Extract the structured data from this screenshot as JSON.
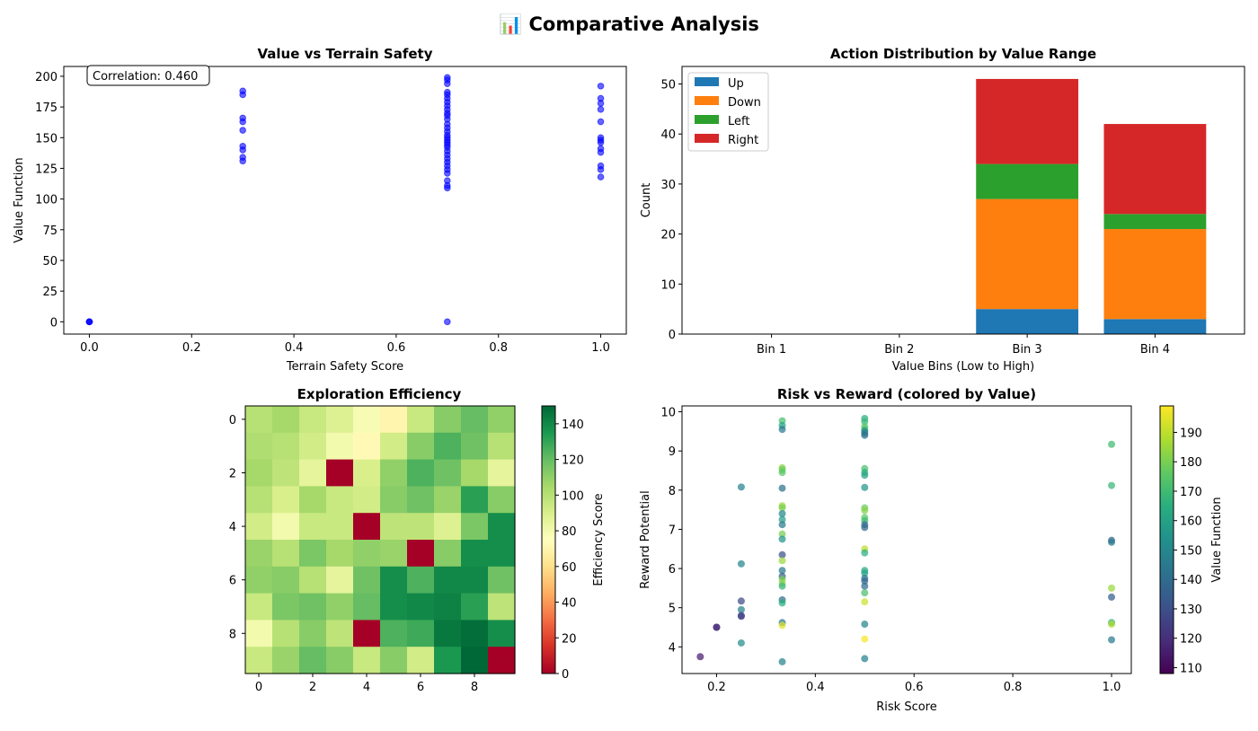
{
  "suptitle": "📊 Comparative Analysis",
  "colors": {
    "scatter_blue": "#0000ff",
    "up": "#1f77b4",
    "down": "#ff7f0e",
    "left": "#2ca02c",
    "right": "#d62728"
  },
  "chart_data": [
    {
      "type": "scatter",
      "title": "Value vs Terrain Safety",
      "xlabel": "Terrain Safety Score",
      "ylabel": "Value Function",
      "xlim": [
        -0.05,
        1.05
      ],
      "ylim": [
        -10,
        208
      ],
      "xticks": [
        0.0,
        0.2,
        0.4,
        0.6,
        0.8,
        1.0
      ],
      "xtick_labels": [
        "0.0",
        "0.2",
        "0.4",
        "0.6",
        "0.8",
        "1.0"
      ],
      "yticks": [
        0,
        25,
        50,
        75,
        100,
        125,
        150,
        175,
        200
      ],
      "yticks_labels": [
        "0",
        "25",
        "50",
        "75",
        "100",
        "125",
        "150",
        "175",
        "200"
      ],
      "annotation": "Correlation: 0.460",
      "points": [
        [
          0.0,
          0
        ],
        [
          0.0,
          0
        ],
        [
          0.0,
          0
        ],
        [
          0.3,
          131
        ],
        [
          0.3,
          134
        ],
        [
          0.3,
          140
        ],
        [
          0.3,
          143
        ],
        [
          0.3,
          156
        ],
        [
          0.3,
          163
        ],
        [
          0.3,
          166
        ],
        [
          0.3,
          185
        ],
        [
          0.3,
          188
        ],
        [
          0.7,
          0
        ],
        [
          0.7,
          109
        ],
        [
          0.7,
          111
        ],
        [
          0.7,
          115
        ],
        [
          0.7,
          121
        ],
        [
          0.7,
          124
        ],
        [
          0.7,
          127
        ],
        [
          0.7,
          130
        ],
        [
          0.7,
          133
        ],
        [
          0.7,
          136
        ],
        [
          0.7,
          139
        ],
        [
          0.7,
          142
        ],
        [
          0.7,
          144
        ],
        [
          0.7,
          146
        ],
        [
          0.7,
          148
        ],
        [
          0.7,
          150
        ],
        [
          0.7,
          152
        ],
        [
          0.7,
          155
        ],
        [
          0.7,
          158
        ],
        [
          0.7,
          161
        ],
        [
          0.7,
          165
        ],
        [
          0.7,
          168
        ],
        [
          0.7,
          170
        ],
        [
          0.7,
          173
        ],
        [
          0.7,
          176
        ],
        [
          0.7,
          179
        ],
        [
          0.7,
          182
        ],
        [
          0.7,
          185
        ],
        [
          0.7,
          187
        ],
        [
          0.7,
          194
        ],
        [
          0.7,
          197
        ],
        [
          0.7,
          199
        ],
        [
          1.0,
          118
        ],
        [
          1.0,
          124
        ],
        [
          1.0,
          127
        ],
        [
          1.0,
          138
        ],
        [
          1.0,
          141
        ],
        [
          1.0,
          146
        ],
        [
          1.0,
          148
        ],
        [
          1.0,
          150
        ],
        [
          1.0,
          163
        ],
        [
          1.0,
          173
        ],
        [
          1.0,
          178
        ],
        [
          1.0,
          182
        ],
        [
          1.0,
          192
        ]
      ]
    },
    {
      "type": "bar",
      "stacked": true,
      "title": "Action Distribution by Value Range",
      "xlabel": "Value Bins (Low to High)",
      "ylabel": "Count",
      "ylim": [
        0,
        53.5
      ],
      "yticks": [
        0,
        10,
        20,
        30,
        40,
        50
      ],
      "yticks_labels": [
        "0",
        "10",
        "20",
        "30",
        "40",
        "50"
      ],
      "categories": [
        "Bin 1",
        "Bin 2",
        "Bin 3",
        "Bin 4"
      ],
      "legend_position": "top-left",
      "series": [
        {
          "name": "Up",
          "values": [
            0,
            0,
            5,
            3
          ]
        },
        {
          "name": "Down",
          "values": [
            0,
            0,
            22,
            18
          ]
        },
        {
          "name": "Left",
          "values": [
            0,
            0,
            7,
            3
          ]
        },
        {
          "name": "Right",
          "values": [
            0,
            0,
            17,
            18
          ]
        }
      ]
    },
    {
      "type": "heatmap",
      "title": "Exploration Efficiency",
      "colorbar_label": "Efficiency Score",
      "colormap": "RdYlGn",
      "vmin": 0,
      "vmax": 150,
      "xticks": [
        0,
        2,
        4,
        6,
        8
      ],
      "xtick_labels": [
        "0",
        "2",
        "4",
        "6",
        "8"
      ],
      "yticks": [
        0,
        2,
        4,
        6,
        8
      ],
      "ytick_labels": [
        "0",
        "2",
        "4",
        "6",
        "8"
      ],
      "colorbar_ticks": [
        0,
        20,
        40,
        60,
        80,
        100,
        120,
        140
      ],
      "colorbar_tick_labels": [
        "0",
        "20",
        "40",
        "60",
        "80",
        "100",
        "120",
        "140"
      ],
      "grid": [
        [
          100,
          105,
          95,
          88,
          78,
          70,
          95,
          112,
          120,
          110
        ],
        [
          102,
          100,
          92,
          80,
          72,
          92,
          112,
          125,
          118,
          100
        ],
        [
          105,
          98,
          85,
          0,
          90,
          110,
          125,
          118,
          105,
          85
        ],
        [
          100,
          90,
          105,
          95,
          92,
          112,
          118,
          108,
          132,
          112
        ],
        [
          92,
          80,
          95,
          95,
          0,
          98,
          98,
          88,
          115,
          138
        ],
        [
          108,
          100,
          115,
          105,
          110,
          108,
          0,
          112,
          138,
          138
        ],
        [
          110,
          112,
          100,
          85,
          118,
          138,
          125,
          140,
          140,
          118
        ],
        [
          95,
          115,
          118,
          110,
          120,
          138,
          140,
          142,
          132,
          98
        ],
        [
          80,
          100,
          112,
          98,
          0,
          125,
          128,
          145,
          148,
          138
        ],
        [
          95,
          108,
          120,
          112,
          95,
          112,
          92,
          135,
          150,
          0
        ]
      ]
    },
    {
      "type": "scatter",
      "title": "Risk vs Reward (colored by Value)",
      "xlabel": "Risk Score",
      "ylabel": "Reward Potential",
      "colorbar_label": "Value Function",
      "colormap": "viridis",
      "vmin": 108,
      "vmax": 199,
      "xlim": [
        0.13,
        1.04
      ],
      "ylim": [
        3.32,
        10.15
      ],
      "xticks": [
        0.2,
        0.4,
        0.6,
        0.8,
        1.0
      ],
      "xtick_labels": [
        "0.2",
        "0.4",
        "0.6",
        "0.8",
        "1.0"
      ],
      "yticks": [
        4,
        5,
        6,
        7,
        8,
        9,
        10
      ],
      "ytick_labels": [
        "4",
        "5",
        "6",
        "7",
        "8",
        "9",
        "10"
      ],
      "colorbar_ticks": [
        110,
        120,
        130,
        140,
        150,
        160,
        170,
        180,
        190
      ],
      "colorbar_tick_labels": [
        "110",
        "120",
        "130",
        "140",
        "150",
        "160",
        "170",
        "180",
        "190"
      ],
      "points": [
        [
          0.167,
          3.75,
          115
        ],
        [
          0.2,
          4.5,
          118
        ],
        [
          0.2,
          4.5,
          120
        ],
        [
          0.25,
          8.08,
          148
        ],
        [
          0.25,
          6.12,
          150
        ],
        [
          0.25,
          5.17,
          128
        ],
        [
          0.25,
          4.95,
          148
        ],
        [
          0.25,
          4.8,
          130
        ],
        [
          0.25,
          4.78,
          125
        ],
        [
          0.25,
          4.1,
          152
        ],
        [
          0.333,
          9.77,
          172
        ],
        [
          0.333,
          9.65,
          160
        ],
        [
          0.333,
          9.55,
          145
        ],
        [
          0.333,
          8.57,
          182
        ],
        [
          0.333,
          8.52,
          178
        ],
        [
          0.333,
          8.45,
          175
        ],
        [
          0.333,
          8.05,
          142
        ],
        [
          0.333,
          7.6,
          185
        ],
        [
          0.333,
          7.55,
          180
        ],
        [
          0.333,
          7.4,
          150
        ],
        [
          0.333,
          7.25,
          158
        ],
        [
          0.333,
          7.12,
          145
        ],
        [
          0.333,
          6.88,
          180
        ],
        [
          0.333,
          6.75,
          155
        ],
        [
          0.333,
          6.35,
          130
        ],
        [
          0.333,
          6.2,
          185
        ],
        [
          0.333,
          5.95,
          145
        ],
        [
          0.333,
          5.8,
          135
        ],
        [
          0.333,
          5.72,
          180
        ],
        [
          0.333,
          5.62,
          182
        ],
        [
          0.333,
          5.55,
          168
        ],
        [
          0.333,
          5.2,
          140
        ],
        [
          0.333,
          5.12,
          165
        ],
        [
          0.333,
          4.62,
          145
        ],
        [
          0.333,
          4.55,
          195
        ],
        [
          0.333,
          3.62,
          148
        ],
        [
          0.5,
          9.83,
          165
        ],
        [
          0.5,
          9.75,
          168
        ],
        [
          0.5,
          9.62,
          175
        ],
        [
          0.5,
          9.55,
          170
        ],
        [
          0.5,
          9.5,
          152
        ],
        [
          0.5,
          9.45,
          145
        ],
        [
          0.5,
          9.4,
          142
        ],
        [
          0.5,
          8.55,
          172
        ],
        [
          0.5,
          8.45,
          165
        ],
        [
          0.5,
          8.38,
          160
        ],
        [
          0.5,
          8.07,
          155
        ],
        [
          0.5,
          7.55,
          178
        ],
        [
          0.5,
          7.48,
          182
        ],
        [
          0.5,
          7.3,
          175
        ],
        [
          0.5,
          7.22,
          170
        ],
        [
          0.5,
          7.12,
          140
        ],
        [
          0.5,
          7.05,
          138
        ],
        [
          0.5,
          6.5,
          190
        ],
        [
          0.5,
          6.4,
          165
        ],
        [
          0.5,
          5.95,
          162
        ],
        [
          0.5,
          5.88,
          160
        ],
        [
          0.5,
          5.75,
          142
        ],
        [
          0.5,
          5.68,
          138
        ],
        [
          0.5,
          5.55,
          140
        ],
        [
          0.5,
          5.38,
          172
        ],
        [
          0.5,
          5.15,
          192
        ],
        [
          0.5,
          4.58,
          150
        ],
        [
          0.5,
          4.2,
          198
        ],
        [
          0.5,
          3.7,
          148
        ],
        [
          1.0,
          9.17,
          170
        ],
        [
          1.0,
          8.12,
          168
        ],
        [
          1.0,
          6.72,
          138
        ],
        [
          1.0,
          6.67,
          145
        ],
        [
          1.0,
          5.5,
          185
        ],
        [
          1.0,
          5.27,
          135
        ],
        [
          1.0,
          4.62,
          165
        ],
        [
          1.0,
          4.58,
          188
        ],
        [
          1.0,
          4.18,
          145
        ]
      ]
    }
  ]
}
